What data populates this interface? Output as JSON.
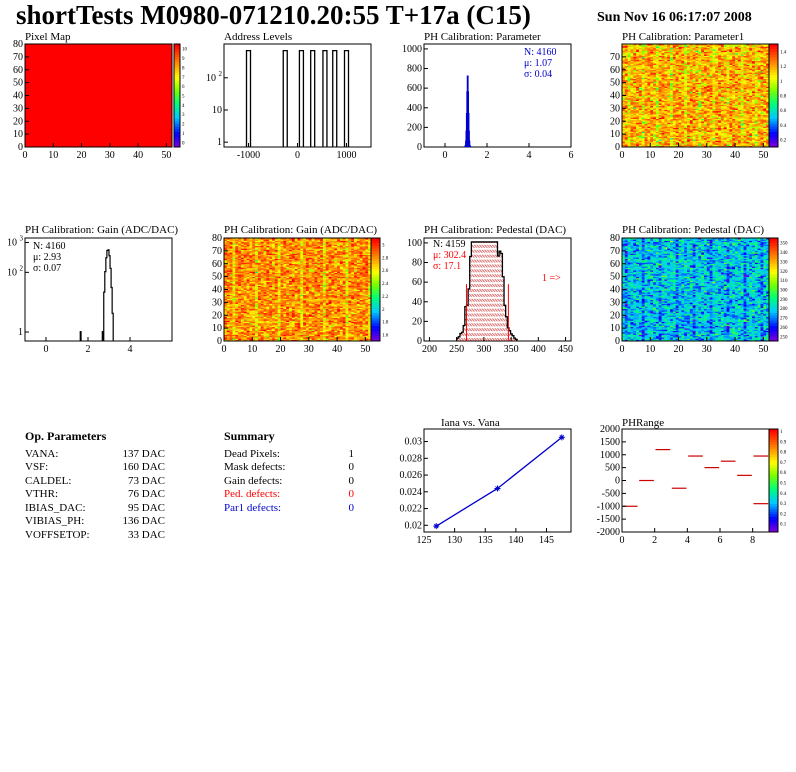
{
  "header": {
    "title": "shortTests M0980-071210.20:55 T+17a (C15)",
    "date": "Sun Nov 16 06:17:07 2008"
  },
  "params": {
    "heading": "Op. Parameters",
    "rows": [
      {
        "name": "VANA:",
        "value": "137 DAC"
      },
      {
        "name": "VSF:",
        "value": "160 DAC"
      },
      {
        "name": "CALDEL:",
        "value": "73 DAC"
      },
      {
        "name": "VTHR:",
        "value": "76 DAC"
      },
      {
        "name": "IBIAS_DAC:",
        "value": "95 DAC"
      },
      {
        "name": "VIBIAS_PH:",
        "value": "136 DAC"
      },
      {
        "name": "VOFFSETOP:",
        "value": "33 DAC"
      }
    ]
  },
  "summary": {
    "heading": "Summary",
    "rows": [
      {
        "name": "Dead Pixels:",
        "value": "1",
        "color": "#000000"
      },
      {
        "name": "Mask defects:",
        "value": "0",
        "color": "#000000"
      },
      {
        "name": "Gain defects:",
        "value": "0",
        "color": "#000000"
      },
      {
        "name": "Ped. defects:",
        "value": "0",
        "color": "#ff0000"
      },
      {
        "name": "Par1 defects:",
        "value": "0",
        "color": "#0000cc"
      }
    ]
  },
  "chart_data": [
    {
      "id": "pixelmap",
      "type": "heatmap",
      "title": "Pixel Map",
      "xlim": [
        0,
        52
      ],
      "ylim": [
        0,
        80
      ],
      "xticks": [
        "0",
        "10",
        "20",
        "30",
        "40",
        "50"
      ],
      "yticks": [
        "0",
        "10",
        "20",
        "30",
        "40",
        "50",
        "60",
        "70",
        "80"
      ],
      "zticks": [
        "0",
        "1",
        "2",
        "3",
        "4",
        "5",
        "6",
        "7",
        "8",
        "9",
        "10"
      ],
      "fill": "#ff0000",
      "note": "uniform 10 hits per pixel"
    },
    {
      "id": "addr",
      "type": "bar",
      "title": "Address Levels",
      "xlim": [
        -1500,
        1500
      ],
      "ylog": true,
      "xticks": [
        "-1000",
        "0",
        "1000"
      ],
      "yticks": [
        "1",
        "10",
        "10^2"
      ],
      "peak_x": [
        -1000,
        -250,
        80,
        310,
        560,
        760,
        1000
      ],
      "peak_count": 700
    },
    {
      "id": "phpar",
      "type": "bar",
      "title": "PH Calibration: Parameter",
      "xlim": [
        -1,
        6
      ],
      "ylim": [
        0,
        1050
      ],
      "xticks": [
        "0",
        "2",
        "4",
        "6"
      ],
      "yticks": [
        "0",
        "200",
        "400",
        "600",
        "800",
        "1000"
      ],
      "stats": [
        {
          "label": "N: 4160"
        },
        {
          "label": "μ: 1.07"
        },
        {
          "label": "σ: 0.04"
        }
      ],
      "mean": 1.07,
      "sigma": 0.04,
      "entries": 4160
    },
    {
      "id": "phpar1",
      "type": "heatmap",
      "title": "PH Calibration: Parameter1",
      "xlim": [
        0,
        52
      ],
      "ylim": [
        0,
        80
      ],
      "xticks": [
        "0",
        "10",
        "20",
        "30",
        "40",
        "50"
      ],
      "yticks": [
        "0",
        "10",
        "20",
        "30",
        "40",
        "50",
        "60",
        "70"
      ],
      "zticks": [
        "0.2",
        "0.4",
        "0.6",
        "0.8",
        "1",
        "1.2",
        "1.4"
      ],
      "zlim": [
        0.1,
        1.5
      ]
    },
    {
      "id": "gain1d",
      "type": "bar",
      "title": "PH Calibration: Gain (ADC/DAC)",
      "xlim": [
        -1,
        6
      ],
      "ylog": true,
      "xticks": [
        "0",
        "2",
        "4"
      ],
      "yticks": [
        "1",
        "10^2",
        "10^3"
      ],
      "stats": [
        {
          "label": "N: 4160"
        },
        {
          "label": "μ: 2.93"
        },
        {
          "label": "σ: 0.07"
        }
      ],
      "mean": 2.93,
      "sigma": 0.07,
      "entries": 4160,
      "outliers": [
        {
          "x": 1.65,
          "count": 1
        },
        {
          "x": 2.7,
          "count": 1
        }
      ]
    },
    {
      "id": "gain2d",
      "type": "heatmap",
      "title": "PH Calibration: Gain (ADC/DAC)",
      "xlim": [
        0,
        52
      ],
      "ylim": [
        0,
        80
      ],
      "xticks": [
        "0",
        "10",
        "20",
        "30",
        "40",
        "50"
      ],
      "yticks": [
        "0",
        "10",
        "20",
        "30",
        "40",
        "50",
        "60",
        "70",
        "80"
      ],
      "zticks": [
        "1.6",
        "1.8",
        "2",
        "2.2",
        "2.4",
        "2.6",
        "2.8",
        "3"
      ],
      "zlim": [
        1.5,
        3.1
      ]
    },
    {
      "id": "ped1d",
      "type": "bar",
      "title": "PH Calibration: Pedestal (DAC)",
      "xlim": [
        190,
        460
      ],
      "ylim": [
        0,
        105
      ],
      "xticks": [
        "200",
        "250",
        "300",
        "350",
        "400",
        "450"
      ],
      "yticks": [
        "0",
        "20",
        "40",
        "60",
        "80",
        "100"
      ],
      "stats": [
        {
          "label": "N: 4159",
          "color": "#000000"
        },
        {
          "label": "μ: 302.4",
          "color": "#ff0000"
        },
        {
          "label": "σ: 17.1",
          "color": "#ff0000"
        }
      ],
      "mean": 302.4,
      "sigma": 17.1,
      "entries": 4159,
      "cut_lines": [
        268,
        345
      ],
      "overflow_label": "1 =>"
    },
    {
      "id": "ped2d",
      "type": "heatmap",
      "title": "PH Calibration: Pedestal (DAC)",
      "xlim": [
        0,
        52
      ],
      "ylim": [
        0,
        80
      ],
      "xticks": [
        "0",
        "10",
        "20",
        "30",
        "40",
        "50"
      ],
      "yticks": [
        "0",
        "10",
        "20",
        "30",
        "40",
        "50",
        "60",
        "70",
        "80"
      ],
      "zticks": [
        "250",
        "260",
        "270",
        "280",
        "290",
        "300",
        "310",
        "320",
        "330",
        "340",
        "350"
      ],
      "zlim": [
        245,
        355
      ]
    },
    {
      "id": "iana",
      "type": "line",
      "title": "Iana vs. Vana",
      "xlim": [
        125,
        149
      ],
      "ylim": [
        0.0192,
        0.0315
      ],
      "xticks": [
        "125",
        "130",
        "135",
        "140",
        "145"
      ],
      "yticks": [
        "0.02",
        "0.022",
        "0.024",
        "0.026",
        "0.028",
        "0.03"
      ],
      "x": [
        127,
        137,
        147.5
      ],
      "y": [
        0.0199,
        0.0244,
        0.0305
      ]
    },
    {
      "id": "phrange",
      "type": "scatter",
      "title": "PHRange",
      "xlim": [
        0,
        9
      ],
      "ylim": [
        -2000,
        2000
      ],
      "xticks": [
        "0",
        "2",
        "4",
        "6",
        "8"
      ],
      "yticks": [
        "-2000",
        "-1500",
        "-1000",
        "-500",
        "0",
        "500",
        "1000",
        "1500",
        "2000"
      ],
      "zticks": [
        "0.1",
        "0.2",
        "0.3",
        "0.4",
        "0.5",
        "0.6",
        "0.7",
        "0.8",
        "0.9",
        "1"
      ],
      "segments": [
        {
          "x": 0.5,
          "y": -1000
        },
        {
          "x": 1.5,
          "y": 0
        },
        {
          "x": 2.5,
          "y": 1200
        },
        {
          "x": 3.5,
          "y": -300
        },
        {
          "x": 4.5,
          "y": 950
        },
        {
          "x": 5.5,
          "y": 500
        },
        {
          "x": 6.5,
          "y": 750
        },
        {
          "x": 7.5,
          "y": 200
        },
        {
          "x": 8.5,
          "y": 950
        },
        {
          "x": 8.5,
          "y": -900
        }
      ]
    }
  ]
}
